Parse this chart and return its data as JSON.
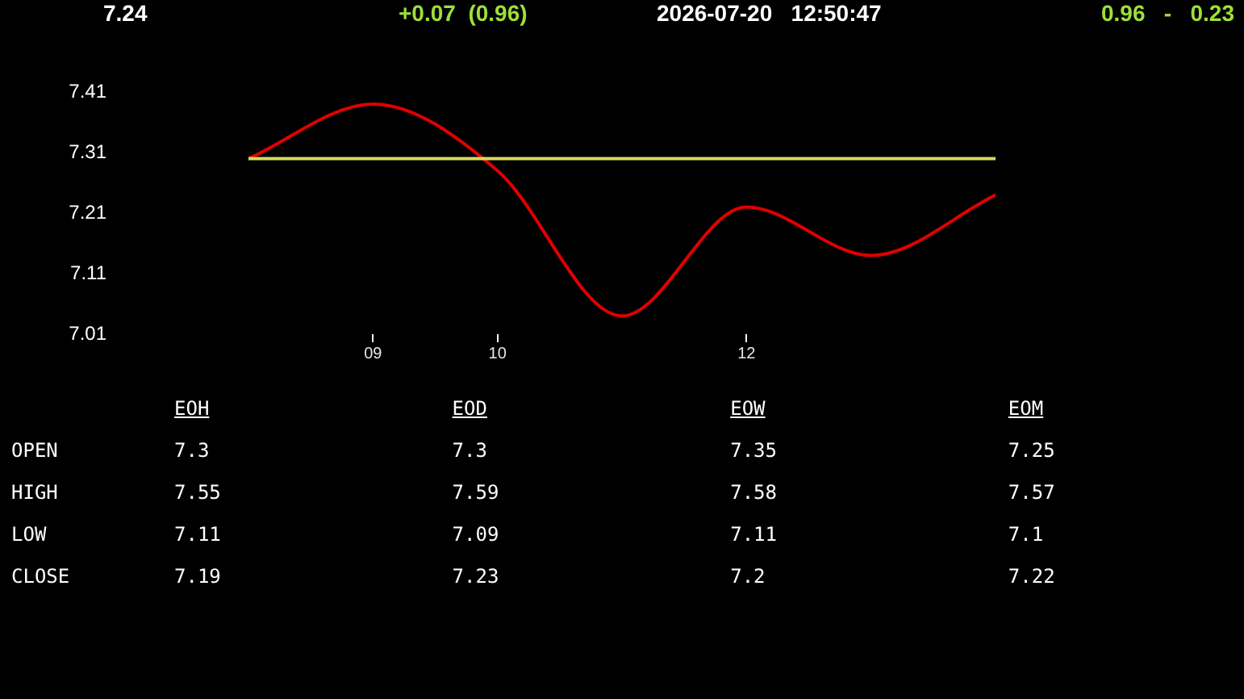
{
  "chart_data": [
    {
      "type": "line",
      "annotations": [
        "7.24",
        "+0.07  (0.96)",
        "2026-07-20   12:50:47",
        "0.96   -   0.23"
      ],
      "x": [
        8,
        9,
        10,
        11,
        12,
        13,
        14
      ],
      "series": [
        {
          "color": "#e00000",
          "values": [
            7.3,
            7.39,
            7.28,
            7.04,
            7.22,
            7.14,
            7.24
          ]
        }
      ],
      "xlim": [
        8,
        14
      ],
      "xticks": [
        {
          "value": 9,
          "label": "09"
        },
        10,
        12
      ],
      "ylim": [
        7.01,
        7.41
      ],
      "yticks": [
        7.01,
        7.11,
        7.21,
        7.31,
        7.41
      ],
      "ref_lines": [
        {
          "axis": "y",
          "value": 7.3,
          "color": "#d4dc5c"
        }
      ],
      "marker": "none"
    },
    {
      "type": "other",
      "categories": [
        "EOH",
        "EOD",
        "EOW",
        "EOM"
      ],
      "series": [
        {
          "name": "OPEN",
          "values": [
            7.3,
            7.3,
            7.35,
            7.25
          ]
        },
        {
          "name": "HIGH",
          "values": [
            7.55,
            7.59,
            7.58,
            7.57
          ]
        },
        {
          "name": "LOW",
          "values": [
            7.11,
            7.09,
            7.11,
            7.1
          ]
        },
        {
          "name": "CLOSE",
          "values": [
            7.19,
            7.23,
            7.2,
            7.22
          ]
        }
      ],
      "data_labels": true
    }
  ]
}
